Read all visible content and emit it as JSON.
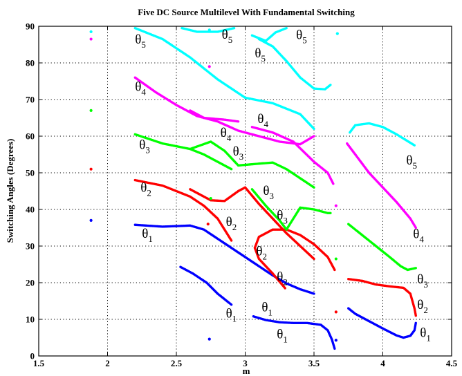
{
  "chart_data": {
    "type": "scatter",
    "title": "Five DC Source Multilevel With Fundamental Switching",
    "xlabel": "m",
    "ylabel": "Switching Angles (Degrees)",
    "xlim": [
      1.5,
      4.5
    ],
    "ylim": [
      0,
      90
    ],
    "xticks": [
      "1.5",
      "2",
      "2.5",
      "3",
      "3.5",
      "4",
      "4.5"
    ],
    "yticks": [
      "0",
      "10",
      "20",
      "30",
      "40",
      "50",
      "60",
      "70",
      "80",
      "90"
    ],
    "grid": true,
    "colors": {
      "theta1": "#0000ff",
      "theta2": "#ff0000",
      "theta3": "#00ff00",
      "theta4": "#ff00ff",
      "theta5": "#00ffff"
    },
    "series": [
      {
        "color": "#0000ff",
        "curves": [
          [
            [
              2.2,
              35.8
            ],
            [
              2.4,
              35.3
            ],
            [
              2.6,
              35.6
            ],
            [
              2.7,
              34.5
            ],
            [
              2.8,
              32
            ],
            [
              2.9,
              29.5
            ],
            [
              3.0,
              27
            ],
            [
              3.1,
              24.5
            ],
            [
              3.2,
              22
            ],
            [
              3.3,
              19.8
            ],
            [
              3.4,
              18.2
            ],
            [
              3.5,
              17
            ]
          ],
          [
            [
              2.53,
              24.3
            ],
            [
              2.62,
              22.5
            ],
            [
              2.72,
              20
            ],
            [
              2.8,
              17
            ],
            [
              2.9,
              14
            ]
          ],
          [
            [
              3.06,
              10.8
            ],
            [
              3.15,
              9.8
            ],
            [
              3.25,
              9.2
            ],
            [
              3.35,
              9
            ],
            [
              3.45,
              9
            ],
            [
              3.55,
              8.5
            ],
            [
              3.6,
              7
            ],
            [
              3.63,
              4.5
            ],
            [
              3.65,
              2
            ]
          ],
          [
            [
              3.75,
              13
            ],
            [
              3.8,
              11.5
            ],
            [
              3.9,
              9.5
            ],
            [
              4.0,
              7.5
            ],
            [
              4.1,
              5.6
            ],
            [
              4.15,
              5
            ],
            [
              4.2,
              5.5
            ],
            [
              4.23,
              7
            ],
            [
              4.24,
              9
            ]
          ]
        ],
        "points": [
          [
            1.88,
            37
          ],
          [
            2.74,
            4.6
          ],
          [
            3.66,
            4.3
          ]
        ]
      },
      {
        "color": "#ff0000",
        "curves": [
          [
            [
              2.2,
              48
            ],
            [
              2.4,
              46.5
            ],
            [
              2.6,
              43.5
            ],
            [
              2.7,
              41
            ],
            [
              2.8,
              37.5
            ],
            [
              2.9,
              31.5
            ]
          ],
          [
            [
              2.6,
              45.5
            ],
            [
              2.75,
              42.5
            ],
            [
              2.85,
              42.3
            ],
            [
              2.95,
              45
            ],
            [
              3.0,
              46
            ],
            [
              3.1,
              41.5
            ],
            [
              3.2,
              37.5
            ],
            [
              3.3,
              33.5
            ],
            [
              3.4,
              30
            ],
            [
              3.5,
              26.5
            ]
          ],
          [
            [
              3.3,
              34.5
            ],
            [
              3.2,
              34.5
            ],
            [
              3.1,
              32.5
            ],
            [
              3.07,
              29.5
            ],
            [
              3.1,
              26.5
            ],
            [
              3.2,
              22.5
            ],
            [
              3.29,
              18.5
            ]
          ],
          [
            [
              3.3,
              34.5
            ],
            [
              3.4,
              33
            ],
            [
              3.5,
              30.5
            ],
            [
              3.6,
              27
            ],
            [
              3.65,
              23.5
            ]
          ],
          [
            [
              3.75,
              21
            ],
            [
              3.85,
              20.5
            ],
            [
              3.95,
              19.5
            ],
            [
              4.05,
              19
            ],
            [
              4.15,
              18.6
            ],
            [
              4.2,
              17
            ],
            [
              4.23,
              13
            ],
            [
              4.24,
              11
            ]
          ]
        ],
        "points": [
          [
            1.88,
            51
          ],
          [
            2.73,
            36
          ],
          [
            3.66,
            12
          ]
        ]
      },
      {
        "color": "#00ff00",
        "curves": [
          [
            [
              2.2,
              60.5
            ],
            [
              2.4,
              58
            ],
            [
              2.6,
              56.5
            ],
            [
              2.7,
              55
            ],
            [
              2.8,
              53
            ],
            [
              2.9,
              51
            ]
          ],
          [
            [
              2.6,
              56.5
            ],
            [
              2.75,
              58.5
            ],
            [
              2.85,
              56
            ],
            [
              2.95,
              52
            ],
            [
              3.1,
              52.5
            ],
            [
              3.2,
              52.8
            ],
            [
              3.3,
              51
            ],
            [
              3.4,
              48.5
            ],
            [
              3.5,
              46
            ]
          ],
          [
            [
              3.05,
              45.5
            ],
            [
              3.15,
              41
            ],
            [
              3.25,
              37
            ],
            [
              3.3,
              34.5
            ],
            [
              3.4,
              40.5
            ],
            [
              3.5,
              40
            ],
            [
              3.6,
              39
            ],
            [
              3.62,
              39
            ]
          ],
          [
            [
              3.75,
              36
            ],
            [
              3.85,
              33
            ],
            [
              3.95,
              30
            ],
            [
              4.05,
              27
            ],
            [
              4.13,
              24.5
            ],
            [
              4.18,
              23.5
            ],
            [
              4.24,
              24
            ]
          ]
        ],
        "points": [
          [
            1.88,
            67
          ],
          [
            2.75,
            43
          ],
          [
            3.66,
            26.5
          ]
        ]
      },
      {
        "color": "#ff00ff",
        "curves": [
          [
            [
              2.2,
              76
            ],
            [
              2.35,
              72
            ],
            [
              2.5,
              68.5
            ],
            [
              2.65,
              65.5
            ],
            [
              2.8,
              64
            ],
            [
              2.95,
              61.5
            ],
            [
              3.1,
              60
            ],
            [
              3.25,
              58.5
            ],
            [
              3.4,
              57.8
            ],
            [
              3.5,
              60
            ]
          ],
          [
            [
              2.6,
              67
            ],
            [
              2.7,
              65
            ],
            [
              2.85,
              64.5
            ],
            [
              2.95,
              64
            ]
          ],
          [
            [
              3.05,
              62.5
            ],
            [
              3.2,
              61
            ],
            [
              3.35,
              58.5
            ],
            [
              3.5,
              53
            ],
            [
              3.6,
              50
            ],
            [
              3.64,
              47
            ]
          ],
          [
            [
              3.74,
              58
            ],
            [
              3.8,
              55
            ],
            [
              3.9,
              50
            ],
            [
              4.0,
              46
            ],
            [
              4.1,
              42
            ],
            [
              4.2,
              37.5
            ],
            [
              4.24,
              35
            ]
          ]
        ],
        "points": [
          [
            1.88,
            86.5
          ],
          [
            2.74,
            79
          ],
          [
            3.66,
            41
          ]
        ]
      },
      {
        "color": "#00ffff",
        "curves": [
          [
            [
              2.2,
              89.5
            ],
            [
              2.4,
              86.5
            ],
            [
              2.6,
              81.5
            ],
            [
              2.8,
              75.5
            ],
            [
              3.0,
              70.5
            ],
            [
              3.2,
              69
            ],
            [
              3.4,
              66
            ],
            [
              3.5,
              62
            ]
          ],
          [
            [
              2.54,
              89.5
            ],
            [
              2.65,
              88.5
            ],
            [
              2.8,
              88.5
            ],
            [
              2.92,
              89.5
            ]
          ],
          [
            [
              3.05,
              87.5
            ],
            [
              3.15,
              86
            ],
            [
              3.22,
              88.3
            ],
            [
              3.3,
              89.5
            ]
          ],
          [
            [
              3.1,
              86.5
            ],
            [
              3.2,
              84.5
            ],
            [
              3.3,
              80.5
            ],
            [
              3.4,
              76
            ],
            [
              3.5,
              73
            ],
            [
              3.58,
              72.8
            ],
            [
              3.62,
              74
            ]
          ],
          [
            [
              3.76,
              61
            ],
            [
              3.8,
              63
            ],
            [
              3.9,
              63.5
            ],
            [
              4.0,
              62.5
            ],
            [
              4.1,
              60.5
            ],
            [
              4.23,
              57.5
            ]
          ]
        ],
        "points": [
          [
            1.88,
            88.5
          ],
          [
            2.74,
            89
          ],
          [
            3.67,
            88
          ]
        ]
      }
    ],
    "annotations": [
      {
        "text": "θ",
        "sub": "1",
        "x": 2.25,
        "y": 32.3
      },
      {
        "text": "θ",
        "sub": "1",
        "x": 2.86,
        "y": 10.5
      },
      {
        "text": "θ",
        "sub": "1",
        "x": 3.12,
        "y": 12.2
      },
      {
        "text": "θ",
        "sub": "1",
        "x": 3.23,
        "y": 4.8
      },
      {
        "text": "θ",
        "sub": "1",
        "x": 4.27,
        "y": 5.2
      },
      {
        "text": "θ",
        "sub": "2",
        "x": 2.24,
        "y": 44.8
      },
      {
        "text": "θ",
        "sub": "2",
        "x": 2.86,
        "y": 35.5
      },
      {
        "text": "θ",
        "sub": "2",
        "x": 3.08,
        "y": 27.5
      },
      {
        "text": "θ",
        "sub": "2",
        "x": 3.23,
        "y": 20.5
      },
      {
        "text": "θ",
        "sub": "2",
        "x": 4.25,
        "y": 12.8
      },
      {
        "text": "θ",
        "sub": "3",
        "x": 2.23,
        "y": 56.5
      },
      {
        "text": "θ",
        "sub": "3",
        "x": 2.91,
        "y": 54.7
      },
      {
        "text": "θ",
        "sub": "3",
        "x": 3.13,
        "y": 44
      },
      {
        "text": "θ",
        "sub": "3",
        "x": 3.23,
        "y": 37.3
      },
      {
        "text": "θ",
        "sub": "3",
        "x": 4.25,
        "y": 19.8
      },
      {
        "text": "θ",
        "sub": "4",
        "x": 2.2,
        "y": 72.4
      },
      {
        "text": "θ",
        "sub": "4",
        "x": 2.82,
        "y": 59.8
      },
      {
        "text": "θ",
        "sub": "4",
        "x": 3.09,
        "y": 63.6
      },
      {
        "text": "θ",
        "sub": "4",
        "x": 4.22,
        "y": 32.2
      },
      {
        "text": "θ",
        "sub": "5",
        "x": 2.2,
        "y": 85.3
      },
      {
        "text": "θ",
        "sub": "5",
        "x": 2.83,
        "y": 86.6
      },
      {
        "text": "θ",
        "sub": "5",
        "x": 3.07,
        "y": 81.5
      },
      {
        "text": "θ",
        "sub": "5",
        "x": 3.37,
        "y": 86.5
      },
      {
        "text": "θ",
        "sub": "5",
        "x": 4.17,
        "y": 52.3
      }
    ]
  }
}
